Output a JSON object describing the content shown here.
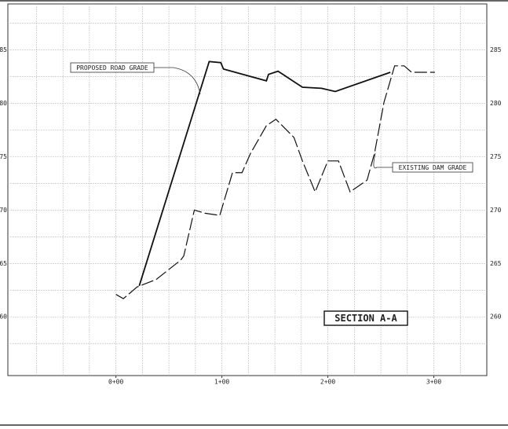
{
  "chart_data": {
    "type": "line",
    "title": "SECTION A-A",
    "xlim": [
      -102,
      350
    ],
    "ylim": [
      254.5,
      289.3
    ],
    "xticks": [
      {
        "value": 0,
        "label": "0+00"
      },
      {
        "value": 100,
        "label": "1+00"
      },
      {
        "value": 200,
        "label": "2+00"
      },
      {
        "value": 300,
        "label": "3+00"
      }
    ],
    "yticks": [
      260,
      265,
      270,
      275,
      280,
      285
    ],
    "xgrid": [
      -75,
      -50,
      -25,
      0,
      25,
      50,
      75,
      100,
      125,
      150,
      175,
      200,
      225,
      250,
      275,
      300,
      325
    ],
    "ygrid": [
      257.5,
      260,
      262.5,
      265,
      267.5,
      270,
      272.5,
      275,
      277.5,
      280,
      282.5,
      285,
      287.5
    ],
    "grid": true,
    "series": [
      {
        "name": "PROPOSED ROAD GRADE",
        "color": "#111111",
        "style": "solid",
        "x": [
          22,
          88,
          99,
          101.5,
          142,
          144,
          153,
          176,
          194,
          207,
          259
        ],
        "values": [
          262.9,
          283.9,
          283.8,
          283.2,
          282.1,
          282.7,
          283.0,
          281.5,
          281.4,
          281.1,
          282.9
        ]
      },
      {
        "name": "EXISTING DAM GRADE",
        "color": "#111111",
        "style": "dashed",
        "x": [
          0,
          7,
          20,
          38,
          61,
          64,
          74,
          84,
          98,
          110,
          119,
          127,
          142,
          151,
          168,
          176,
          188,
          200,
          210,
          221,
          237,
          244,
          253,
          263,
          272,
          279,
          301
        ],
        "values": [
          262.1,
          261.7,
          262.8,
          263.5,
          265.3,
          265.7,
          270,
          269.7,
          269.5,
          273.5,
          273.5,
          275.3,
          277.9,
          278.5,
          276.8,
          274.6,
          271.7,
          274.6,
          274.6,
          271.7,
          272.8,
          275.3,
          280.1,
          283.5,
          283.5,
          282.9,
          282.9
        ]
      }
    ]
  }
}
